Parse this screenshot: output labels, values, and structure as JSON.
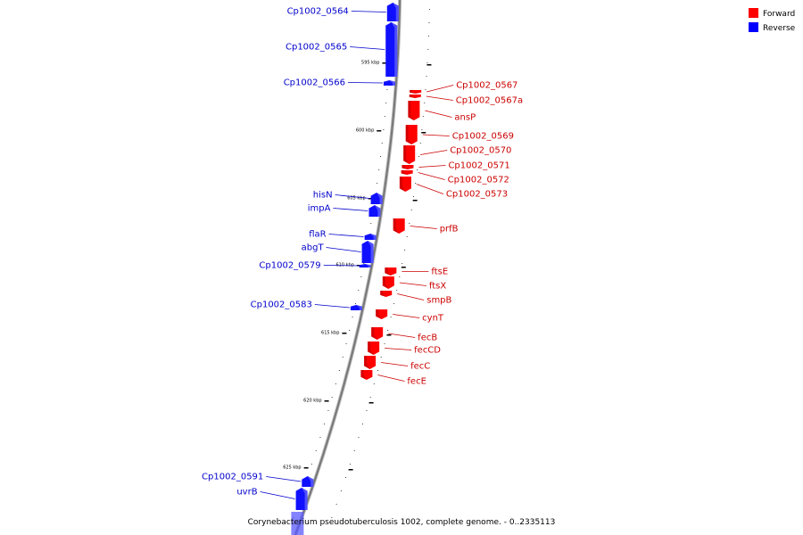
{
  "caption": "Corynebacterium pseudotuberculosis 1002, complete genome. - 0..2335113",
  "legend": [
    {
      "label": "Forward",
      "color": "#ff0000"
    },
    {
      "label": "Reverse",
      "color": "#0000ff"
    }
  ],
  "colors": {
    "forward": "#ff0000",
    "reverse": "#1010ff",
    "label_forward": "#cc0000",
    "label_reverse": "#0000cc",
    "backbone": "#888888"
  },
  "kbp_labels": [
    "595 kbp",
    "600 kbp",
    "605 kbp",
    "610 kbp",
    "615 kbp",
    "620 kbp",
    "625 kbp"
  ],
  "reverse_genes": [
    "Cp1002_0564",
    "Cp1002_0565",
    "Cp1002_0566",
    "hisN",
    "impA",
    "flaR",
    "abgT",
    "Cp1002_0579",
    "Cp1002_0583",
    "Cp1002_0591",
    "uvrB"
  ],
  "forward_genes": [
    "Cp1002_0567",
    "Cp1002_0567a",
    "ansP",
    "Cp1002_0569",
    "Cp1002_0570",
    "Cp1002_0571",
    "Cp1002_0572",
    "Cp1002_0573",
    "prfB",
    "ftsE",
    "ftsX",
    "smpB",
    "cynT",
    "fecB",
    "fecCD",
    "fecC",
    "fecE"
  ]
}
